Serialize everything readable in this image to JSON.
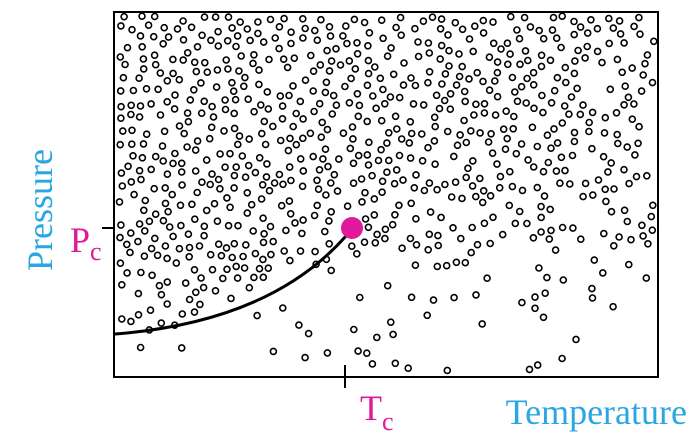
{
  "axes": {
    "y_label": "Pressure",
    "x_label": "Temperature"
  },
  "critical_point": {
    "pressure_label": {
      "main": "P",
      "sub": "c"
    },
    "temperature_label": {
      "main": "T",
      "sub": "c"
    }
  }
}
